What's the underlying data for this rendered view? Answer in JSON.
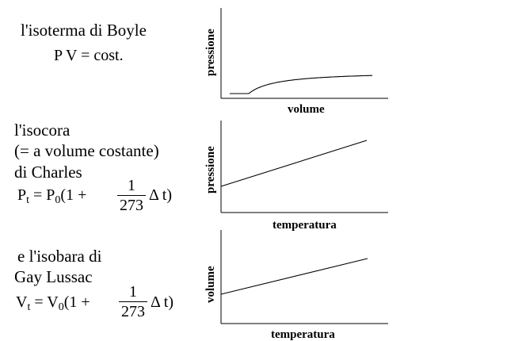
{
  "panels": [
    {
      "lines": [
        "l'isoterma di Boyle"
      ],
      "formula": "P V = cost.",
      "chart": {
        "ylabel": "pressione",
        "xlabel": "volume",
        "shape": "hyperbola"
      }
    },
    {
      "lines": [
        "l'isocora",
        "(= a volume costante)",
        "di Charles"
      ],
      "formula": {
        "lhs": "P",
        "lhs_sub": "t",
        "eq": "=",
        "rhs": "P",
        "rhs_sub": "0",
        "open": "(1 +",
        "num": "1",
        "den": "273",
        "close": "Δ t)"
      },
      "chart": {
        "ylabel": "pressione",
        "xlabel": "temperatura",
        "shape": "line"
      }
    },
    {
      "lines": [
        "e l'isobara di",
        "Gay Lussac"
      ],
      "formula": {
        "lhs": "V",
        "lhs_sub": "t",
        "eq": "=",
        "rhs": "V",
        "rhs_sub": "0",
        "open": "(1 +",
        "num": "1",
        "den": "273",
        "close": "Δ t)"
      },
      "chart": {
        "ylabel": "volume",
        "xlabel": "temperatura",
        "shape": "line"
      }
    }
  ]
}
